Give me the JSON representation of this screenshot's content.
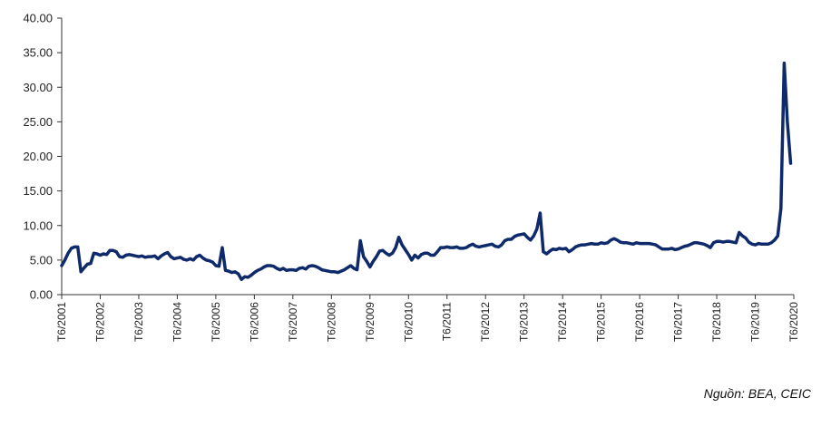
{
  "chart_data": {
    "type": "line",
    "title": "",
    "xlabel": "",
    "ylabel": "",
    "ylim": [
      0,
      40
    ],
    "y_ticks": [
      "0.00",
      "5.00",
      "10.00",
      "15.00",
      "20.00",
      "25.00",
      "30.00",
      "35.00",
      "40.00"
    ],
    "x_ticks": [
      "T6/2001",
      "T6/2002",
      "T6/2003",
      "T6/2004",
      "T6/2005",
      "T6/2006",
      "T6/2007",
      "T6/2008",
      "T6/2009",
      "T6/2010",
      "T6/2011",
      "T6/2012",
      "T6/2013",
      "T6/2014",
      "T6/2015",
      "T6/2016",
      "T6/2017",
      "T6/2018",
      "T6/2019",
      "T6/2020"
    ],
    "grid": false,
    "legend": "none",
    "line_color": "#0f2a6b",
    "series": [
      {
        "points": [
          [
            "2001-06",
            4.2
          ],
          [
            "2001-07",
            5.0
          ],
          [
            "2001-08",
            6.0
          ],
          [
            "2001-09",
            6.7
          ],
          [
            "2001-10",
            6.9
          ],
          [
            "2001-11",
            6.9
          ],
          [
            "2001-12",
            3.3
          ],
          [
            "2002-01",
            3.9
          ],
          [
            "2002-02",
            4.4
          ],
          [
            "2002-03",
            4.5
          ],
          [
            "2002-04",
            6.0
          ],
          [
            "2002-05",
            5.9
          ],
          [
            "2002-06",
            5.7
          ],
          [
            "2002-07",
            5.9
          ],
          [
            "2002-08",
            5.8
          ],
          [
            "2002-09",
            6.4
          ],
          [
            "2002-10",
            6.4
          ],
          [
            "2002-11",
            6.2
          ],
          [
            "2002-12",
            5.5
          ],
          [
            "2003-01",
            5.4
          ],
          [
            "2003-02",
            5.7
          ],
          [
            "2003-03",
            5.8
          ],
          [
            "2003-04",
            5.7
          ],
          [
            "2003-05",
            5.6
          ],
          [
            "2003-06",
            5.5
          ],
          [
            "2003-07",
            5.6
          ],
          [
            "2003-08",
            5.4
          ],
          [
            "2003-09",
            5.5
          ],
          [
            "2003-10",
            5.5
          ],
          [
            "2003-11",
            5.6
          ],
          [
            "2003-12",
            5.2
          ],
          [
            "2004-01",
            5.6
          ],
          [
            "2004-02",
            5.9
          ],
          [
            "2004-03",
            6.1
          ],
          [
            "2004-04",
            5.5
          ],
          [
            "2004-05",
            5.2
          ],
          [
            "2004-06",
            5.3
          ],
          [
            "2004-07",
            5.4
          ],
          [
            "2004-08",
            5.1
          ],
          [
            "2004-09",
            5.0
          ],
          [
            "2004-10",
            5.2
          ],
          [
            "2004-11",
            5.0
          ],
          [
            "2004-12",
            5.5
          ],
          [
            "2005-01",
            5.7
          ],
          [
            "2005-02",
            5.3
          ],
          [
            "2005-03",
            5.0
          ],
          [
            "2005-04",
            4.9
          ],
          [
            "2005-05",
            4.7
          ],
          [
            "2005-06",
            4.2
          ],
          [
            "2005-07",
            4.1
          ],
          [
            "2005-08",
            6.8
          ],
          [
            "2005-09",
            3.5
          ],
          [
            "2005-10",
            3.4
          ],
          [
            "2005-11",
            3.2
          ],
          [
            "2005-12",
            3.3
          ],
          [
            "2006-01",
            3.0
          ],
          [
            "2006-02",
            2.2
          ],
          [
            "2006-03",
            2.6
          ],
          [
            "2006-04",
            2.5
          ],
          [
            "2006-05",
            2.8
          ],
          [
            "2006-06",
            3.2
          ],
          [
            "2006-07",
            3.5
          ],
          [
            "2006-08",
            3.7
          ],
          [
            "2006-09",
            4.0
          ],
          [
            "2006-10",
            4.2
          ],
          [
            "2006-11",
            4.2
          ],
          [
            "2006-12",
            4.1
          ],
          [
            "2007-01",
            3.8
          ],
          [
            "2007-02",
            3.6
          ],
          [
            "2007-03",
            3.8
          ],
          [
            "2007-04",
            3.5
          ],
          [
            "2007-05",
            3.6
          ],
          [
            "2007-06",
            3.6
          ],
          [
            "2007-07",
            3.5
          ],
          [
            "2007-08",
            3.8
          ],
          [
            "2007-09",
            3.9
          ],
          [
            "2007-10",
            3.7
          ],
          [
            "2007-11",
            4.1
          ],
          [
            "2007-12",
            4.2
          ],
          [
            "2008-01",
            4.1
          ],
          [
            "2008-02",
            3.9
          ],
          [
            "2008-03",
            3.6
          ],
          [
            "2008-04",
            3.5
          ],
          [
            "2008-05",
            3.4
          ],
          [
            "2008-06",
            3.3
          ],
          [
            "2008-07",
            3.3
          ],
          [
            "2008-08",
            3.2
          ],
          [
            "2008-09",
            3.4
          ],
          [
            "2008-10",
            3.6
          ],
          [
            "2008-11",
            3.9
          ],
          [
            "2008-12",
            4.2
          ],
          [
            "2009-01",
            3.8
          ],
          [
            "2009-02",
            3.6
          ],
          [
            "2009-03",
            7.8
          ],
          [
            "2009-04",
            5.5
          ],
          [
            "2009-05",
            4.8
          ],
          [
            "2009-06",
            4.0
          ],
          [
            "2009-07",
            4.8
          ],
          [
            "2009-08",
            5.5
          ],
          [
            "2009-09",
            6.3
          ],
          [
            "2009-10",
            6.4
          ],
          [
            "2009-11",
            6.0
          ],
          [
            "2009-12",
            5.7
          ],
          [
            "2010-01",
            6.0
          ],
          [
            "2010-02",
            6.8
          ],
          [
            "2010-03",
            8.3
          ],
          [
            "2010-04",
            7.2
          ],
          [
            "2010-05",
            6.5
          ],
          [
            "2010-06",
            5.8
          ],
          [
            "2010-07",
            5.0
          ],
          [
            "2010-08",
            5.7
          ],
          [
            "2010-09",
            5.3
          ],
          [
            "2010-10",
            5.8
          ],
          [
            "2010-11",
            6.0
          ],
          [
            "2010-12",
            6.0
          ],
          [
            "2011-01",
            5.7
          ],
          [
            "2011-02",
            5.7
          ],
          [
            "2011-03",
            6.2
          ],
          [
            "2011-04",
            6.8
          ],
          [
            "2011-05",
            6.8
          ],
          [
            "2011-06",
            6.9
          ],
          [
            "2011-07",
            6.8
          ],
          [
            "2011-08",
            6.8
          ],
          [
            "2011-09",
            6.9
          ],
          [
            "2011-10",
            6.7
          ],
          [
            "2011-11",
            6.7
          ],
          [
            "2011-12",
            6.8
          ],
          [
            "2012-01",
            7.1
          ],
          [
            "2012-02",
            7.3
          ],
          [
            "2012-03",
            7.0
          ],
          [
            "2012-04",
            6.9
          ],
          [
            "2012-05",
            7.0
          ],
          [
            "2012-06",
            7.1
          ],
          [
            "2012-07",
            7.2
          ],
          [
            "2012-08",
            7.3
          ],
          [
            "2012-09",
            7.0
          ],
          [
            "2012-10",
            6.9
          ],
          [
            "2012-11",
            7.2
          ],
          [
            "2012-12",
            7.8
          ],
          [
            "2013-01",
            8.0
          ],
          [
            "2013-02",
            8.0
          ],
          [
            "2013-03",
            8.4
          ],
          [
            "2013-04",
            8.6
          ],
          [
            "2013-05",
            8.7
          ],
          [
            "2013-06",
            8.8
          ],
          [
            "2013-07",
            8.3
          ],
          [
            "2013-08",
            7.9
          ],
          [
            "2013-09",
            8.5
          ],
          [
            "2013-10",
            9.5
          ],
          [
            "2013-11",
            11.8
          ],
          [
            "2013-12",
            6.2
          ],
          [
            "2014-01",
            5.9
          ],
          [
            "2014-02",
            6.3
          ],
          [
            "2014-03",
            6.6
          ],
          [
            "2014-04",
            6.5
          ],
          [
            "2014-05",
            6.7
          ],
          [
            "2014-06",
            6.6
          ],
          [
            "2014-07",
            6.7
          ],
          [
            "2014-08",
            6.2
          ],
          [
            "2014-09",
            6.5
          ],
          [
            "2014-10",
            6.9
          ],
          [
            "2014-11",
            7.1
          ],
          [
            "2014-12",
            7.2
          ],
          [
            "2015-01",
            7.2
          ],
          [
            "2015-02",
            7.3
          ],
          [
            "2015-03",
            7.4
          ],
          [
            "2015-04",
            7.3
          ],
          [
            "2015-05",
            7.3
          ],
          [
            "2015-06",
            7.5
          ],
          [
            "2015-07",
            7.4
          ],
          [
            "2015-08",
            7.5
          ],
          [
            "2015-09",
            7.9
          ],
          [
            "2015-10",
            8.1
          ],
          [
            "2015-11",
            7.9
          ],
          [
            "2015-12",
            7.6
          ],
          [
            "2016-01",
            7.5
          ],
          [
            "2016-02",
            7.5
          ],
          [
            "2016-03",
            7.4
          ],
          [
            "2016-04",
            7.3
          ],
          [
            "2016-05",
            7.5
          ],
          [
            "2016-06",
            7.4
          ],
          [
            "2016-07",
            7.4
          ],
          [
            "2016-08",
            7.4
          ],
          [
            "2016-09",
            7.4
          ],
          [
            "2016-10",
            7.3
          ],
          [
            "2016-11",
            7.2
          ],
          [
            "2016-12",
            6.9
          ],
          [
            "2017-01",
            6.6
          ],
          [
            "2017-02",
            6.6
          ],
          [
            "2017-03",
            6.6
          ],
          [
            "2017-04",
            6.7
          ],
          [
            "2017-05",
            6.5
          ],
          [
            "2017-06",
            6.6
          ],
          [
            "2017-07",
            6.8
          ],
          [
            "2017-08",
            7.0
          ],
          [
            "2017-09",
            7.1
          ],
          [
            "2017-10",
            7.3
          ],
          [
            "2017-11",
            7.5
          ],
          [
            "2017-12",
            7.5
          ],
          [
            "2018-01",
            7.4
          ],
          [
            "2018-02",
            7.3
          ],
          [
            "2018-03",
            7.1
          ],
          [
            "2018-04",
            6.8
          ],
          [
            "2018-05",
            7.5
          ],
          [
            "2018-06",
            7.7
          ],
          [
            "2018-07",
            7.7
          ],
          [
            "2018-08",
            7.6
          ],
          [
            "2018-09",
            7.7
          ],
          [
            "2018-10",
            7.7
          ],
          [
            "2018-11",
            7.6
          ],
          [
            "2018-12",
            7.5
          ],
          [
            "2019-01",
            9.0
          ],
          [
            "2019-02",
            8.5
          ],
          [
            "2019-03",
            8.2
          ],
          [
            "2019-04",
            7.6
          ],
          [
            "2019-05",
            7.3
          ],
          [
            "2019-06",
            7.2
          ],
          [
            "2019-07",
            7.4
          ],
          [
            "2019-08",
            7.3
          ],
          [
            "2019-09",
            7.3
          ],
          [
            "2019-10",
            7.3
          ],
          [
            "2019-11",
            7.5
          ],
          [
            "2019-12",
            7.9
          ],
          [
            "2020-01",
            8.5
          ],
          [
            "2020-02",
            12.5
          ],
          [
            "2020-03",
            33.5
          ],
          [
            "2020-04",
            25.0
          ],
          [
            "2020-05",
            19.0
          ]
        ]
      }
    ]
  },
  "source_note": "Nguồn: BEA, CEIC"
}
